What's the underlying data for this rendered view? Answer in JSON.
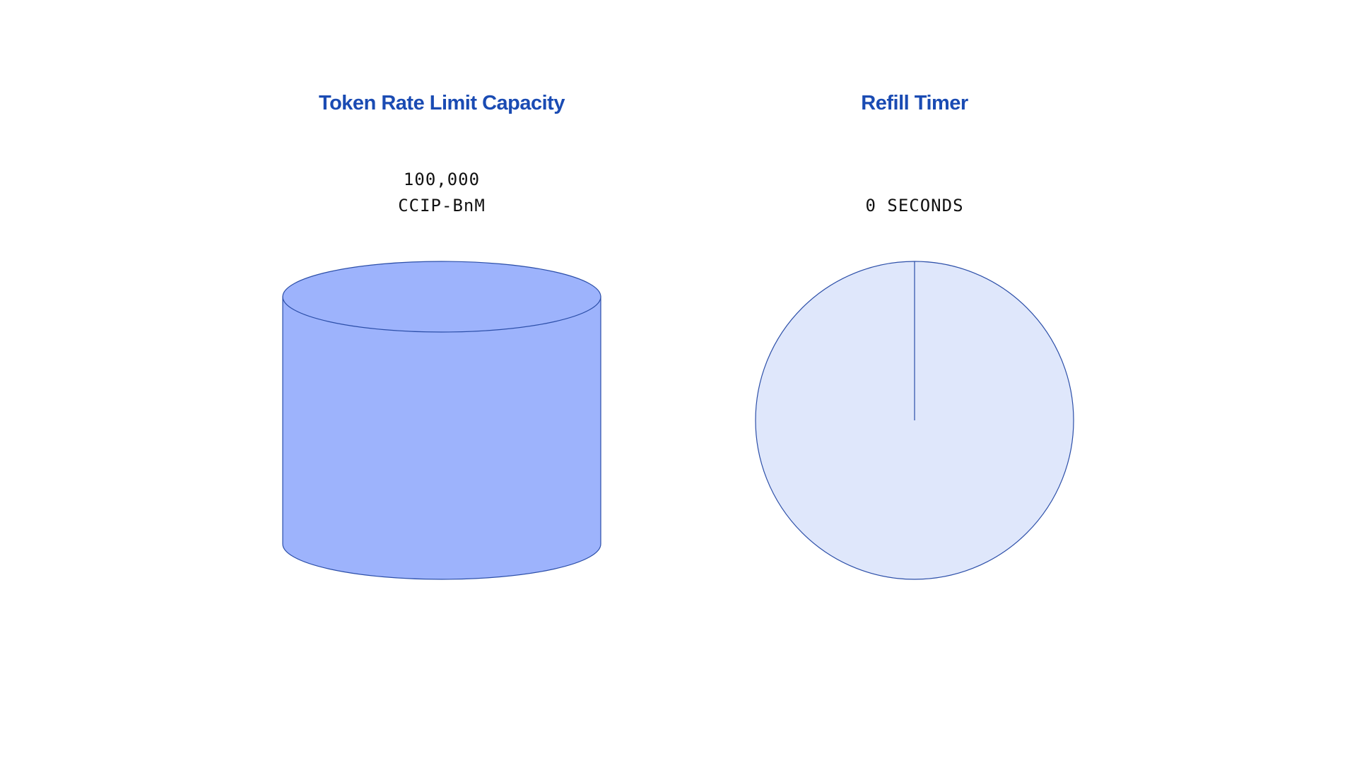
{
  "capacity": {
    "title": "Token Rate Limit Capacity",
    "amount": "100,000",
    "token": "CCIP-BnM",
    "fill_fraction": 1.0
  },
  "timer": {
    "title": "Refill Timer",
    "value": "0 SECONDS",
    "elapsed_fraction": 0
  },
  "colors": {
    "title": "#1a4bb3",
    "cylinder_fill": "#9db3fc",
    "pie_fill": "#dfe7fb",
    "stroke": "#2b4ea8"
  }
}
